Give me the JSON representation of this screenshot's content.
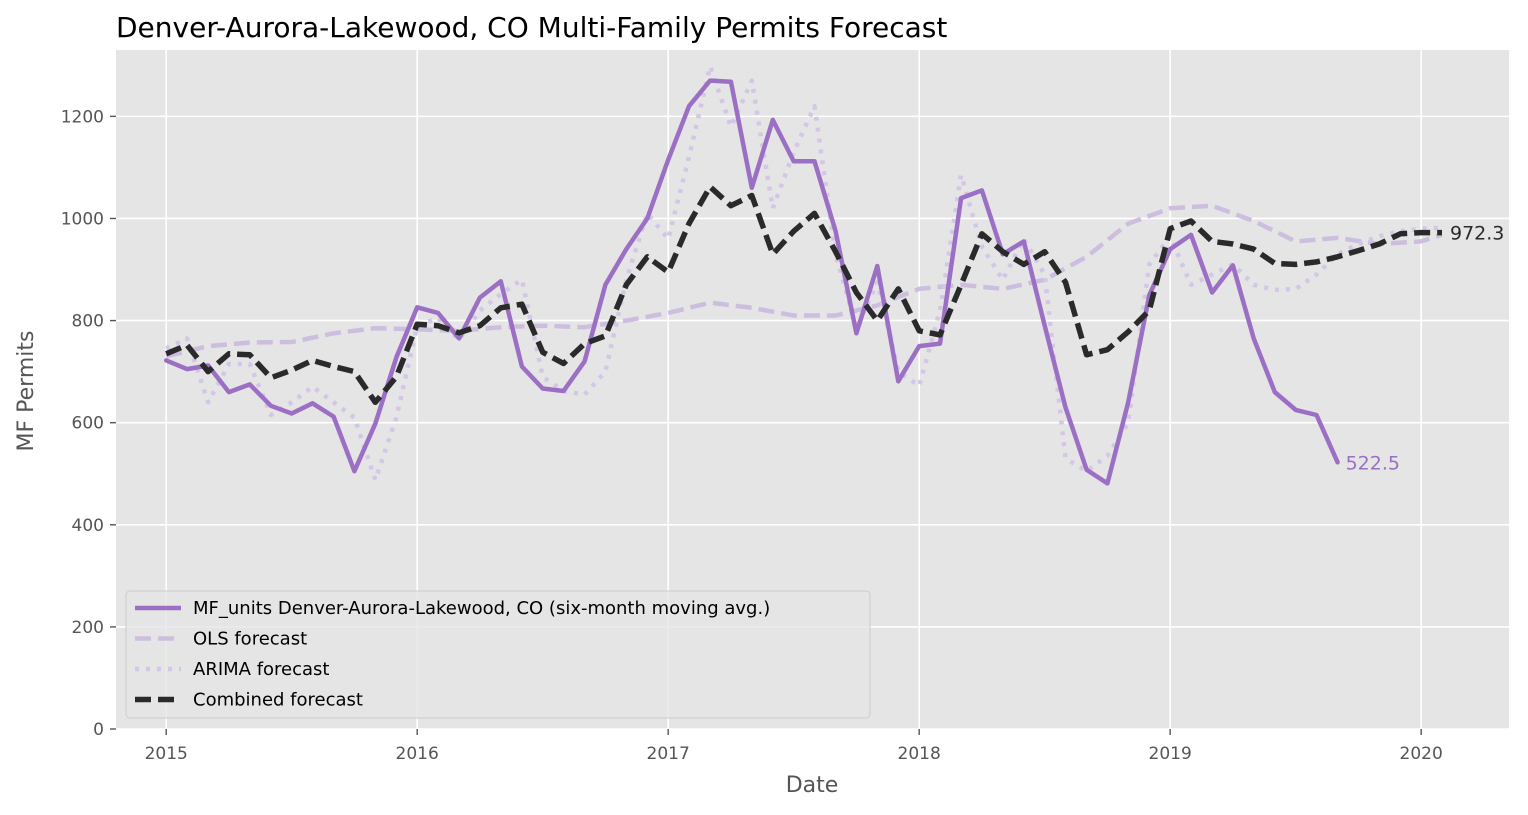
{
  "chart_data": {
    "type": "line",
    "title": "Denver-Aurora-Lakewood, CO Multi-Family Permits Forecast",
    "xlabel": "Date",
    "ylabel": "MF Permits",
    "xlim": [
      2014.8,
      2020.35
    ],
    "ylim": [
      0,
      1330
    ],
    "grid": true,
    "legend_position": "lower-left",
    "x_ticks": [
      {
        "value": 2015,
        "label": "2015"
      },
      {
        "value": 2016,
        "label": "2016"
      },
      {
        "value": 2017,
        "label": "2017"
      },
      {
        "value": 2018,
        "label": "2018"
      },
      {
        "value": 2019,
        "label": "2019"
      },
      {
        "value": 2020,
        "label": "2020"
      }
    ],
    "y_ticks": [
      {
        "value": 0,
        "label": "0"
      },
      {
        "value": 200,
        "label": "200"
      },
      {
        "value": 400,
        "label": "400"
      },
      {
        "value": 600,
        "label": "600"
      },
      {
        "value": 800,
        "label": "800"
      },
      {
        "value": 1000,
        "label": "1000"
      },
      {
        "value": 1200,
        "label": "1200"
      }
    ],
    "series": [
      {
        "name": "MF_units Denver-Aurora-Lakewood, CO (six-month moving avg.)",
        "color": "#9b6fc4",
        "dash": "solid",
        "opacity": 1,
        "x": [
          2015.0,
          2015.083,
          2015.167,
          2015.25,
          2015.333,
          2015.417,
          2015.5,
          2015.583,
          2015.667,
          2015.75,
          2015.833,
          2015.917,
          2016.0,
          2016.083,
          2016.167,
          2016.25,
          2016.333,
          2016.417,
          2016.5,
          2016.583,
          2016.667,
          2016.75,
          2016.833,
          2016.917,
          2017.0,
          2017.083,
          2017.167,
          2017.25,
          2017.333,
          2017.417,
          2017.5,
          2017.583,
          2017.667,
          2017.75,
          2017.833,
          2017.917,
          2018.0,
          2018.083,
          2018.167,
          2018.25,
          2018.333,
          2018.417,
          2018.5,
          2018.583,
          2018.667,
          2018.75,
          2018.833,
          2018.917,
          2019.0,
          2019.083,
          2019.167,
          2019.25,
          2019.333,
          2019.417,
          2019.5,
          2019.583,
          2019.667
        ],
        "y": [
          722,
          705,
          712,
          660,
          675,
          633,
          618,
          638,
          612,
          505,
          598,
          728,
          826,
          815,
          765,
          845,
          877,
          710,
          667,
          662,
          720,
          870,
          940,
          1000,
          1115,
          1220,
          1270,
          1268,
          1060,
          1193,
          1112,
          1112,
          975,
          775,
          907,
          681,
          750,
          755,
          1040,
          1055,
          930,
          955,
          790,
          630,
          508,
          481,
          640,
          850,
          940,
          968,
          855,
          908,
          765,
          660,
          625,
          615,
          522.5
        ],
        "end_label": "522.5"
      },
      {
        "name": "OLS forecast",
        "color": "#cdbedf",
        "dash": "dashed",
        "opacity": 1,
        "x": [
          2015.0,
          2015.167,
          2015.333,
          2015.5,
          2015.667,
          2015.833,
          2016.0,
          2016.167,
          2016.333,
          2016.5,
          2016.667,
          2016.833,
          2017.0,
          2017.167,
          2017.333,
          2017.5,
          2017.667,
          2017.833,
          2018.0,
          2018.167,
          2018.333,
          2018.5,
          2018.667,
          2018.833,
          2019.0,
          2019.167,
          2019.333,
          2019.5,
          2019.667,
          2019.833,
          2020.0,
          2020.083
        ],
        "y": [
          730,
          750,
          757,
          758,
          775,
          785,
          783,
          780,
          787,
          790,
          787,
          800,
          815,
          835,
          825,
          810,
          810,
          830,
          862,
          870,
          862,
          880,
          925,
          990,
          1020,
          1025,
          995,
          955,
          962,
          950,
          955,
          968
        ]
      },
      {
        "name": "ARIMA forecast",
        "color": "#d4c6e6",
        "dash": "dotted",
        "opacity": 1,
        "x": [
          2015.0,
          2015.083,
          2015.167,
          2015.25,
          2015.333,
          2015.417,
          2015.5,
          2015.583,
          2015.667,
          2015.75,
          2015.833,
          2015.917,
          2016.0,
          2016.083,
          2016.167,
          2016.25,
          2016.333,
          2016.417,
          2016.5,
          2016.583,
          2016.667,
          2016.75,
          2016.833,
          2016.917,
          2017.0,
          2017.083,
          2017.167,
          2017.25,
          2017.333,
          2017.417,
          2017.5,
          2017.583,
          2017.667,
          2017.75,
          2017.833,
          2017.917,
          2018.0,
          2018.083,
          2018.167,
          2018.25,
          2018.333,
          2018.417,
          2018.5,
          2018.583,
          2018.667,
          2018.75,
          2018.833,
          2018.917,
          2019.0,
          2019.083,
          2019.167,
          2019.25,
          2019.333,
          2019.417,
          2019.5,
          2019.583,
          2019.667,
          2019.75,
          2019.833,
          2019.917,
          2020.0,
          2020.083
        ],
        "y": [
          745,
          765,
          640,
          715,
          715,
          615,
          640,
          670,
          640,
          610,
          488,
          610,
          790,
          805,
          762,
          820,
          852,
          880,
          690,
          662,
          655,
          700,
          880,
          1010,
          960,
          1120,
          1298,
          1180,
          1270,
          1020,
          1130,
          1220,
          930,
          785,
          875,
          700,
          672,
          820,
          1085,
          945,
          880,
          960,
          890,
          530,
          505,
          535,
          600,
          910,
          965,
          870,
          890,
          910,
          870,
          860,
          862,
          890,
          930,
          950,
          965,
          975,
          980,
          982
        ]
      },
      {
        "name": "Combined forecast",
        "color": "#2a2a2a",
        "dash": "dashed-bold",
        "opacity": 1,
        "x": [
          2015.0,
          2015.083,
          2015.167,
          2015.25,
          2015.333,
          2015.417,
          2015.5,
          2015.583,
          2015.667,
          2015.75,
          2015.833,
          2015.917,
          2016.0,
          2016.083,
          2016.167,
          2016.25,
          2016.333,
          2016.417,
          2016.5,
          2016.583,
          2016.667,
          2016.75,
          2016.833,
          2016.917,
          2017.0,
          2017.083,
          2017.167,
          2017.25,
          2017.333,
          2017.417,
          2017.5,
          2017.583,
          2017.667,
          2017.75,
          2017.833,
          2017.917,
          2018.0,
          2018.083,
          2018.167,
          2018.25,
          2018.333,
          2018.417,
          2018.5,
          2018.583,
          2018.667,
          2018.75,
          2018.833,
          2018.917,
          2019.0,
          2019.083,
          2019.167,
          2019.25,
          2019.333,
          2019.417,
          2019.5,
          2019.583,
          2019.667,
          2019.75,
          2019.833,
          2019.917,
          2020.0,
          2020.083
        ],
        "y": [
          735,
          752,
          700,
          735,
          733,
          688,
          703,
          722,
          710,
          700,
          640,
          690,
          793,
          790,
          776,
          790,
          825,
          832,
          738,
          716,
          755,
          770,
          870,
          925,
          895,
          990,
          1062,
          1025,
          1045,
          930,
          975,
          1010,
          935,
          855,
          800,
          862,
          780,
          772,
          870,
          970,
          935,
          910,
          935,
          875,
          733,
          743,
          778,
          820,
          980,
          995,
          955,
          950,
          940,
          912,
          910,
          915,
          925,
          937,
          950,
          970,
          972.3,
          972.3
        ],
        "end_label": "972.3"
      }
    ]
  }
}
